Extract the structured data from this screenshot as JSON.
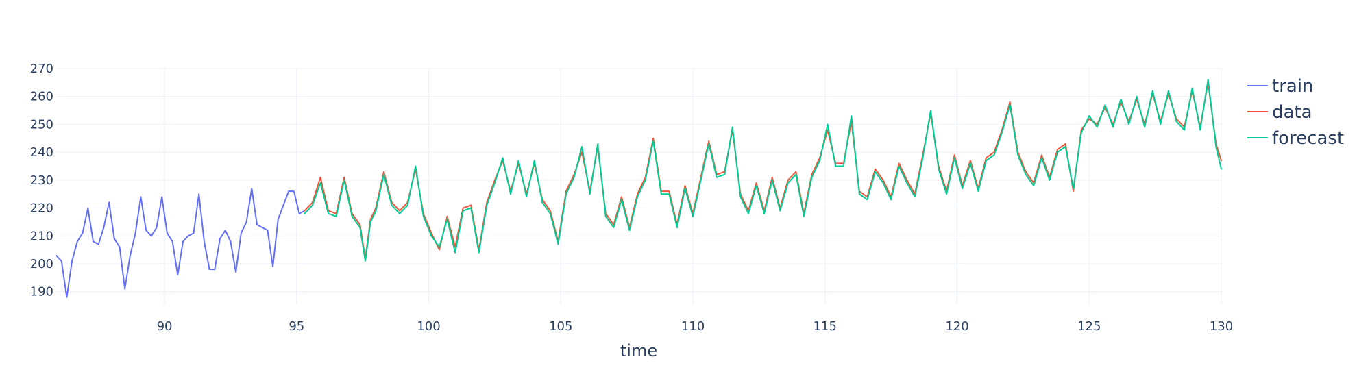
{
  "chart_data": {
    "type": "line",
    "title": "",
    "xlabel": "time",
    "ylabel": "",
    "xlim": [
      85.9,
      130
    ],
    "ylim": [
      185.5,
      270
    ],
    "xticks": [
      90,
      95,
      100,
      105,
      110,
      115,
      120,
      125,
      130
    ],
    "yticks": [
      190,
      200,
      210,
      220,
      230,
      240,
      250,
      260,
      270
    ],
    "grid": true,
    "legend": "top-right",
    "series": [
      {
        "name": "train",
        "color": "#636efa",
        "x": [
          85.9,
          86.1,
          86.3,
          86.5,
          86.7,
          86.9,
          87.1,
          87.3,
          87.5,
          87.7,
          87.9,
          88.1,
          88.3,
          88.5,
          88.7,
          88.9,
          89.1,
          89.3,
          89.5,
          89.7,
          89.9,
          90.1,
          90.3,
          90.5,
          90.7,
          90.9,
          91.1,
          91.3,
          91.5,
          91.7,
          91.9,
          92.1,
          92.3,
          92.5,
          92.7,
          92.9,
          93.1,
          93.3,
          93.5,
          93.7,
          93.9,
          94.1,
          94.3,
          94.5,
          94.7,
          94.9,
          95.1,
          95.3
        ],
        "y": [
          203,
          201,
          188,
          201,
          208,
          211,
          220,
          208,
          207,
          213,
          222,
          209,
          206,
          191,
          203,
          211,
          224,
          212,
          210,
          213,
          224,
          211,
          208,
          196,
          208,
          210,
          211,
          225,
          208,
          198,
          198,
          209,
          212,
          208,
          197,
          211,
          215,
          227,
          214,
          213,
          212,
          199,
          216,
          221,
          226,
          226,
          218,
          219
        ]
      },
      {
        "name": "data",
        "color": "#ef553b",
        "x": [
          95.3,
          95.6,
          95.9,
          96.2,
          96.5,
          96.8,
          97.1,
          97.4,
          97.6,
          97.8,
          98.0,
          98.3,
          98.6,
          98.9,
          99.2,
          99.5,
          99.8,
          100.1,
          100.4,
          100.7,
          101.0,
          101.3,
          101.6,
          101.9,
          102.2,
          102.5,
          102.8,
          103.1,
          103.4,
          103.7,
          104.0,
          104.3,
          104.6,
          104.9,
          105.2,
          105.5,
          105.8,
          106.1,
          106.4,
          106.7,
          107.0,
          107.3,
          107.6,
          107.9,
          108.2,
          108.5,
          108.8,
          109.1,
          109.4,
          109.7,
          110.0,
          110.3,
          110.6,
          110.9,
          111.2,
          111.5,
          111.8,
          112.1,
          112.4,
          112.7,
          113.0,
          113.3,
          113.6,
          113.9,
          114.2,
          114.5,
          114.8,
          115.1,
          115.4,
          115.7,
          116.0,
          116.3,
          116.6,
          116.9,
          117.2,
          117.5,
          117.8,
          118.1,
          118.4,
          118.7,
          119.0,
          119.3,
          119.6,
          119.9,
          120.2,
          120.5,
          120.8,
          121.1,
          121.4,
          121.7,
          122.0,
          122.3,
          122.6,
          122.9,
          123.2,
          123.5,
          123.8,
          124.1,
          124.4,
          124.7,
          125.0,
          125.3,
          125.6,
          125.9,
          126.2,
          126.5,
          126.8,
          127.1,
          127.4,
          127.7,
          128.0,
          128.3,
          128.6,
          128.9,
          129.2,
          129.5,
          129.8,
          130.0
        ],
        "y": [
          219,
          222,
          231,
          219,
          218,
          231,
          218,
          214,
          202,
          216,
          220,
          233,
          222,
          219,
          222,
          234,
          218,
          211,
          205,
          217,
          206,
          220,
          221,
          205,
          222,
          230,
          237,
          226,
          236,
          225,
          236,
          223,
          219,
          208,
          226,
          232,
          240,
          226,
          242,
          218,
          214,
          224,
          213,
          225,
          231,
          245,
          226,
          226,
          214,
          228,
          218,
          231,
          244,
          232,
          233,
          248,
          225,
          219,
          229,
          219,
          231,
          220,
          230,
          233,
          218,
          232,
          238,
          248,
          236,
          236,
          251,
          226,
          224,
          234,
          230,
          224,
          236,
          230,
          225,
          239,
          254,
          235,
          226,
          239,
          228,
          237,
          227,
          238,
          240,
          248,
          258,
          240,
          233,
          229,
          239,
          231,
          241,
          243,
          226,
          248,
          252,
          250,
          256,
          250,
          258,
          251,
          259,
          250,
          261,
          251,
          261,
          252,
          249,
          262,
          249,
          265,
          243,
          237
        ]
      },
      {
        "name": "forecast",
        "color": "#00cc96",
        "x": [
          95.3,
          95.6,
          95.9,
          96.2,
          96.5,
          96.8,
          97.1,
          97.4,
          97.6,
          97.8,
          98.0,
          98.3,
          98.6,
          98.9,
          99.2,
          99.5,
          99.8,
          100.1,
          100.4,
          100.7,
          101.0,
          101.3,
          101.6,
          101.9,
          102.2,
          102.5,
          102.8,
          103.1,
          103.4,
          103.7,
          104.0,
          104.3,
          104.6,
          104.9,
          105.2,
          105.5,
          105.8,
          106.1,
          106.4,
          106.7,
          107.0,
          107.3,
          107.6,
          107.9,
          108.2,
          108.5,
          108.8,
          109.1,
          109.4,
          109.7,
          110.0,
          110.3,
          110.6,
          110.9,
          111.2,
          111.5,
          111.8,
          112.1,
          112.4,
          112.7,
          113.0,
          113.3,
          113.6,
          113.9,
          114.2,
          114.5,
          114.8,
          115.1,
          115.4,
          115.7,
          116.0,
          116.3,
          116.6,
          116.9,
          117.2,
          117.5,
          117.8,
          118.1,
          118.4,
          118.7,
          119.0,
          119.3,
          119.6,
          119.9,
          120.2,
          120.5,
          120.8,
          121.1,
          121.4,
          121.7,
          122.0,
          122.3,
          122.6,
          122.9,
          123.2,
          123.5,
          123.8,
          124.1,
          124.4,
          124.7,
          125.0,
          125.3,
          125.6,
          125.9,
          126.2,
          126.5,
          126.8,
          127.1,
          127.4,
          127.7,
          128.0,
          128.3,
          128.6,
          128.9,
          129.2,
          129.5,
          129.8,
          130.0
        ],
        "y": [
          218,
          221,
          229,
          218,
          217,
          230,
          217,
          213,
          201,
          215,
          219,
          232,
          221,
          218,
          221,
          235,
          217,
          210,
          206,
          216,
          204,
          219,
          220,
          204,
          221,
          229,
          238,
          225,
          237,
          224,
          237,
          222,
          218,
          207,
          225,
          231,
          242,
          225,
          243,
          217,
          213,
          223,
          212,
          224,
          230,
          244,
          225,
          225,
          213,
          227,
          217,
          230,
          243,
          231,
          232,
          249,
          224,
          218,
          228,
          218,
          230,
          219,
          229,
          232,
          217,
          231,
          237,
          250,
          235,
          235,
          253,
          225,
          223,
          233,
          229,
          223,
          235,
          229,
          224,
          238,
          255,
          234,
          225,
          238,
          227,
          236,
          226,
          237,
          239,
          247,
          257,
          239,
          232,
          228,
          238,
          230,
          240,
          242,
          227,
          247,
          253,
          249,
          257,
          249,
          259,
          250,
          260,
          249,
          262,
          250,
          262,
          251,
          248,
          263,
          248,
          266,
          242,
          234
        ]
      }
    ]
  }
}
